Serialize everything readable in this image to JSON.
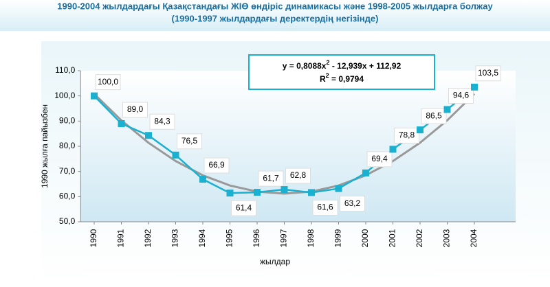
{
  "chart_data": {
    "type": "line",
    "title": "1990-2004 жылдардағы Қазақстандағы ЖІӨ өндіріс динамикасы және 1998-2005 жылдарға болжау",
    "subtitle": "(1990-1997 жылдардағы деректердің негізінде)",
    "y_label": "1990 жылға пайызбен",
    "x_label": "жылдар",
    "categories": [
      "1990",
      "1991",
      "1992",
      "1993",
      "1994",
      "1995",
      "1996",
      "1997",
      "1998",
      "1999",
      "2000",
      "2001",
      "2002",
      "2003",
      "2004"
    ],
    "series": [
      {
        "color": "#1ab0d0",
        "values": [
          100.0,
          89.0,
          84.3,
          76.5,
          66.9,
          61.4,
          61.7,
          62.8,
          61.6,
          63.2,
          69.4,
          78.8,
          86.5,
          94.6,
          103.5
        ],
        "value_labels": [
          "100,0",
          "89,0",
          "84,3",
          "76,5",
          "66,9",
          "61,4",
          "61,7",
          "62,8",
          "61,6",
          "63,2",
          "69,4",
          "78,8",
          "86,5",
          "94,6",
          "103,5"
        ]
      },
      {
        "color": "#999999",
        "values": [
          100.79,
          90.28,
          81.38,
          74.1,
          68.45,
          64.4,
          61.98,
          61.17,
          61.98,
          64.41,
          68.45,
          74.12,
          81.4,
          90.29,
          100.81
        ]
      }
    ],
    "equation": {
      "pre": "y = 0,8088x",
      "sup": "2",
      "post": " - 12,939x + 112,92"
    },
    "r2": {
      "pre": "R",
      "sup": "2",
      "post": " = 0,9794"
    },
    "ylim": [
      50,
      110
    ],
    "yticks": [
      {
        "value": 50,
        "label": "50,0"
      },
      {
        "value": 60,
        "label": "60,0"
      },
      {
        "value": 70,
        "label": "70,0"
      },
      {
        "value": 80,
        "label": "80,0"
      },
      {
        "value": 90,
        "label": "90,0"
      },
      {
        "value": 100,
        "label": "100,0"
      },
      {
        "value": 110,
        "label": "110,0"
      }
    ]
  }
}
